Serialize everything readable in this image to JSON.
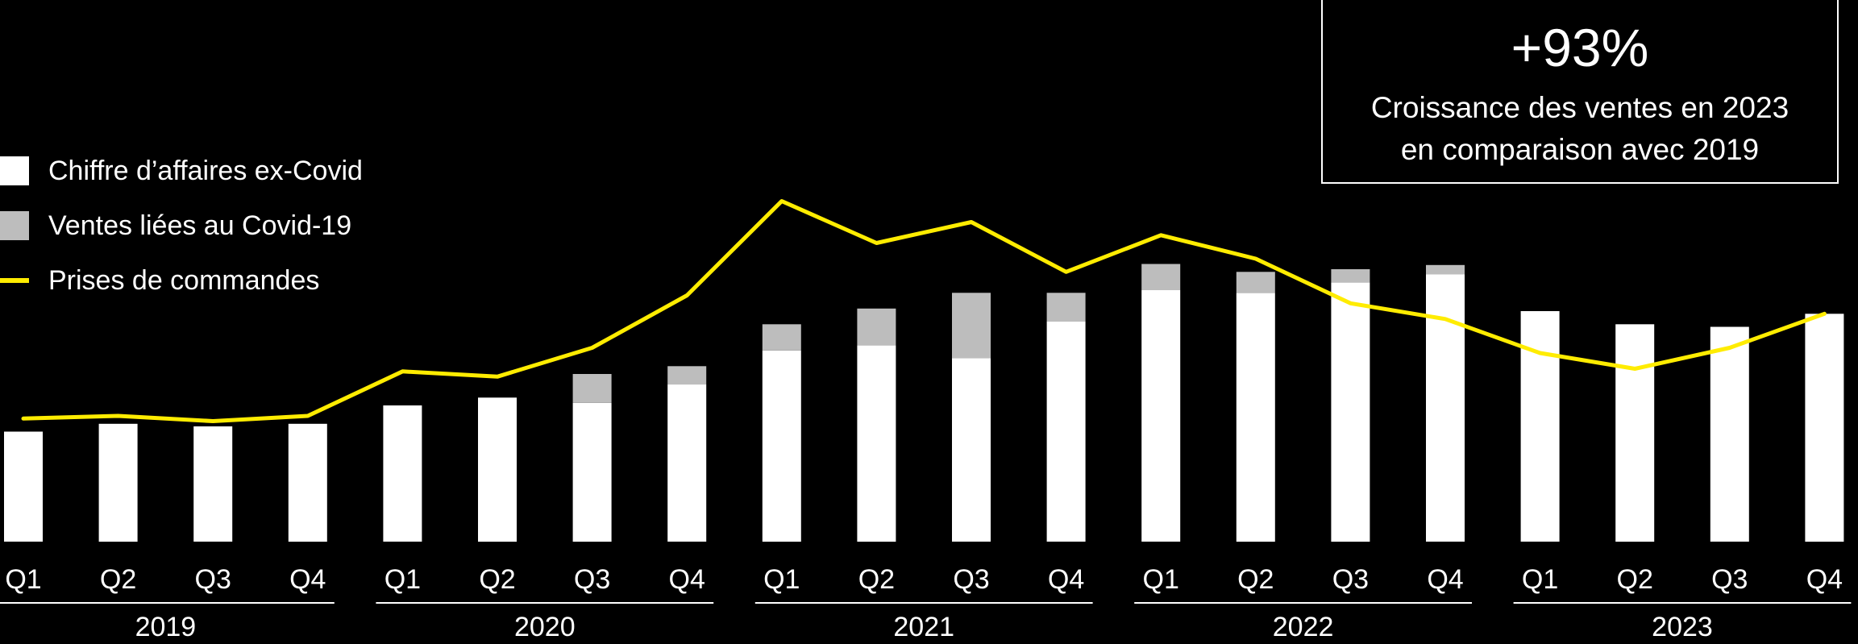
{
  "colors": {
    "background": "#000000",
    "ex_covid": "#ffffff",
    "covid": "#bdbdbd",
    "orders": "#ffec00",
    "text": "#ffffff"
  },
  "legend": {
    "items": [
      {
        "label": "Chiffre d’affaires ex-Covid",
        "kind": "swatch",
        "color": "#ffffff"
      },
      {
        "label": "Ventes liées au Covid-19",
        "kind": "swatch",
        "color": "#bdbdbd"
      },
      {
        "label": "Prises de commandes",
        "kind": "line",
        "color": "#ffec00"
      }
    ]
  },
  "callout": {
    "value": "+93%",
    "line1": "Croissance des ventes en 2023",
    "line2": "en comparaison avec 2019"
  },
  "chart_data": {
    "type": "bar",
    "title": "",
    "xlabel": "",
    "ylabel": "",
    "ylim": [
      0,
      100
    ],
    "grid": false,
    "categories": [
      "Q1",
      "Q2",
      "Q3",
      "Q4",
      "Q1",
      "Q2",
      "Q3",
      "Q4",
      "Q1",
      "Q2",
      "Q3",
      "Q4",
      "Q1",
      "Q2",
      "Q3",
      "Q4",
      "Q1",
      "Q2",
      "Q3",
      "Q4"
    ],
    "years": [
      {
        "label": "2019",
        "quarters": [
          0,
          3
        ]
      },
      {
        "label": "2020",
        "quarters": [
          4,
          7
        ]
      },
      {
        "label": "2021",
        "quarters": [
          8,
          11
        ]
      },
      {
        "label": "2022",
        "quarters": [
          12,
          15
        ]
      },
      {
        "label": "2023",
        "quarters": [
          16,
          19
        ]
      }
    ],
    "series": [
      {
        "name": "Chiffre d’affaires ex-Covid",
        "type": "bar",
        "stack": "sales",
        "values": [
          21,
          22.5,
          22,
          22.5,
          26,
          27.5,
          26.5,
          30,
          36.5,
          37.5,
          35,
          42,
          48,
          47.5,
          49.5,
          51,
          44,
          41.5,
          41,
          43.5
        ]
      },
      {
        "name": "Ventes liées au Covid-19",
        "type": "bar",
        "stack": "sales",
        "values": [
          0,
          0,
          0,
          0,
          0,
          0,
          5.5,
          3.5,
          5,
          7,
          12.5,
          5.5,
          5,
          4,
          2.5,
          1.8,
          0,
          0,
          0,
          0
        ]
      },
      {
        "name": "Prises de commandes",
        "type": "line",
        "values": [
          23.5,
          24,
          23,
          24,
          32.5,
          31.5,
          37,
          47,
          65,
          57,
          61,
          51.5,
          58.5,
          54,
          45.5,
          42.5,
          36,
          33,
          37,
          43.5
        ]
      }
    ]
  }
}
